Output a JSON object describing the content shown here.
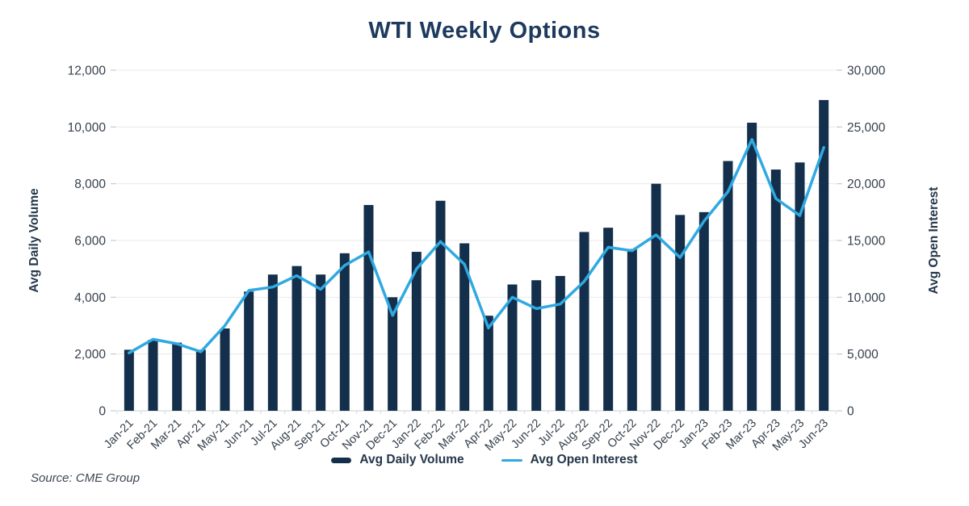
{
  "chart": {
    "title": "WTI Weekly Options",
    "source": "Source: CME Group"
  },
  "colors": {
    "bar": "#142f4b",
    "line": "#2fa9e1",
    "title_text": "#1d3a5e",
    "axis_text": "#36404d",
    "axis_title_text": "#24364a",
    "gridline": "#e9eaec",
    "axis_line": "#d4dade",
    "tick_mark": "#c3cad1",
    "background": "#ffffff"
  },
  "chart_data": {
    "type": "bar",
    "title": "WTI Weekly Options",
    "grid": true,
    "legend_position": "bottom",
    "categories": [
      "Jan-21",
      "Feb-21",
      "Mar-21",
      "Apr-21",
      "May-21",
      "Jun-21",
      "Jul-21",
      "Aug-21",
      "Sep-21",
      "Oct-21",
      "Nov-21",
      "Dec-21",
      "Jan-22",
      "Feb-22",
      "Mar-22",
      "Apr-22",
      "May-22",
      "Jun-22",
      "Jul-22",
      "Aug-22",
      "Sep-22",
      "Oct-22",
      "Nov-22",
      "Dec-22",
      "Jan-23",
      "Feb-23",
      "Mar-23",
      "Apr-23",
      "May-23",
      "Jun-23"
    ],
    "series": [
      {
        "name": "Avg Daily Volume",
        "type": "bar",
        "axis": "left",
        "color": "#142f4b",
        "values": [
          2150,
          2500,
          2400,
          2150,
          2900,
          4200,
          4800,
          5100,
          4800,
          5550,
          7250,
          4000,
          5600,
          7400,
          5900,
          3350,
          4450,
          4600,
          4750,
          6300,
          6450,
          5700,
          8000,
          6900,
          7000,
          8800,
          10150,
          8500,
          8750,
          10950
        ]
      },
      {
        "name": "Avg Open Interest",
        "type": "line",
        "axis": "right",
        "color": "#2fa9e1",
        "values": [
          5100,
          6300,
          5900,
          5200,
          7500,
          10600,
          10900,
          11900,
          10700,
          12800,
          14000,
          8400,
          12500,
          14900,
          12900,
          7300,
          10000,
          9000,
          9400,
          11400,
          14400,
          14100,
          15500,
          13500,
          16700,
          19300,
          23900,
          18700,
          17200,
          23200
        ]
      }
    ],
    "left_axis": {
      "label": "Avg Daily Volume",
      "min": 0,
      "max": 12000,
      "tick_values": [
        0,
        2000,
        4000,
        6000,
        8000,
        10000,
        12000
      ],
      "tick_labels": [
        "0",
        "2,000",
        "4,000",
        "6,000",
        "8,000",
        "10,000",
        "12,000"
      ]
    },
    "right_axis": {
      "label": "Avg Open Interest",
      "min": 0,
      "max": 30000,
      "tick_values": [
        0,
        5000,
        10000,
        15000,
        20000,
        25000,
        30000
      ],
      "tick_labels": [
        "0",
        "5,000",
        "10,000",
        "15,000",
        "20,000",
        "25,000",
        "30,000"
      ]
    }
  }
}
